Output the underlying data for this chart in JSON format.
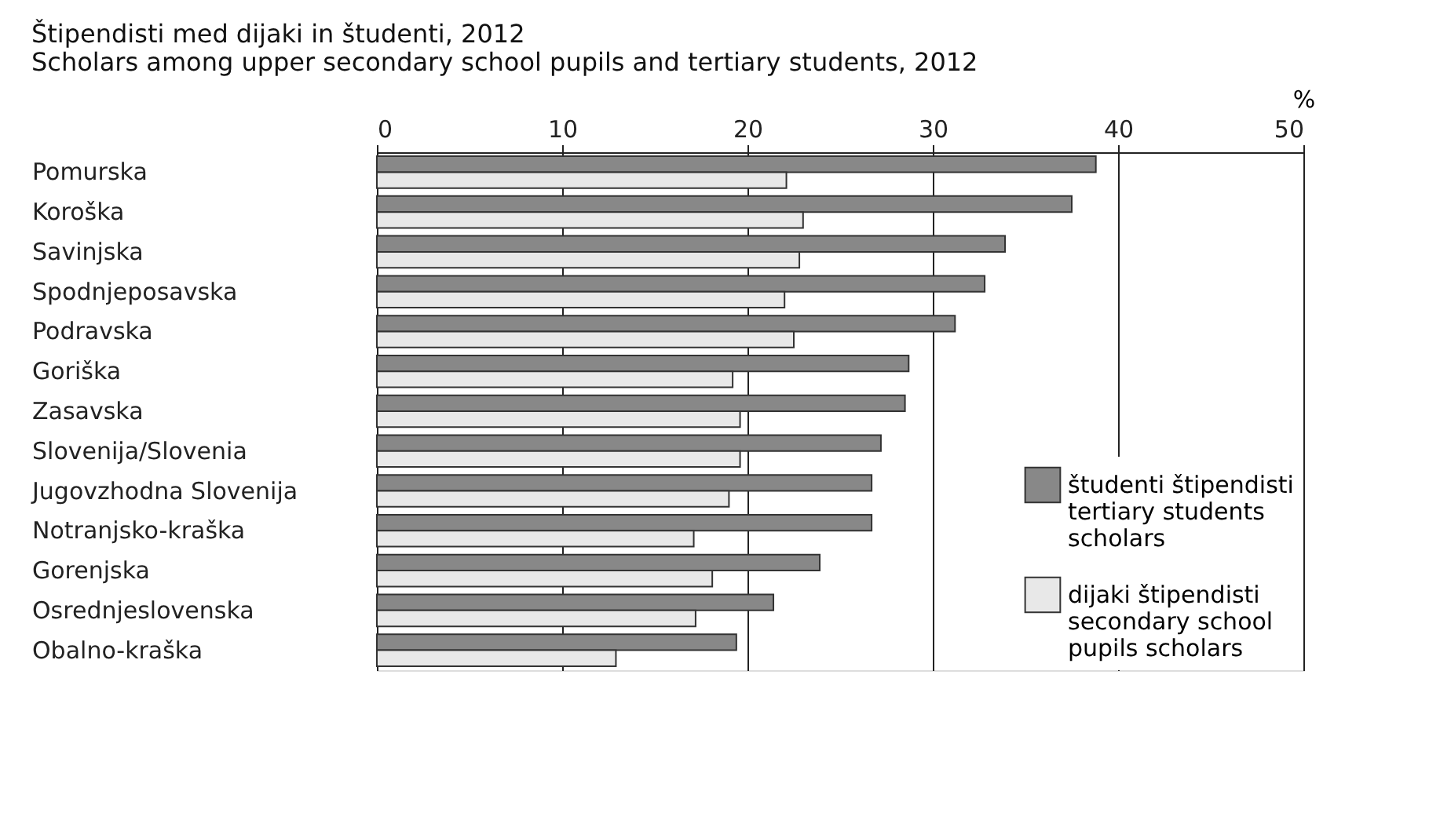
{
  "chart_data": {
    "type": "bar",
    "orientation": "horizontal",
    "title": [
      "Štipendisti med dijaki in študenti, 2012",
      "Scholars among upper secondary school pupils and tertiary students, 2012"
    ],
    "xlabel": "%",
    "categories": [
      "Pomurska",
      "Koroška",
      "Savinjska",
      "Spodnjeposavska",
      "Podravska",
      "Goriška",
      "Zasavska",
      "Slovenija/Slovenia",
      "Jugovzhodna Slovenija",
      "Notranjsko-kraška",
      "Gorenjska",
      "Osrednjeslovenska",
      "Obalno-kraška"
    ],
    "series": [
      {
        "name": "študenti štipendisti\ntertiary students\nscholars",
        "color": "#888888",
        "values": [
          38.8,
          37.5,
          33.9,
          32.8,
          31.2,
          28.7,
          28.5,
          27.2,
          26.7,
          26.7,
          23.9,
          21.4,
          19.4
        ]
      },
      {
        "name": "dijaki štipendisti\nsecondary school\npupils scholars",
        "color": "#e8e8e8",
        "values": [
          22.1,
          23.0,
          22.8,
          22.0,
          22.5,
          19.2,
          19.6,
          19.6,
          19.0,
          17.1,
          18.1,
          17.2,
          12.9
        ]
      }
    ],
    "xlim": [
      0,
      50
    ],
    "xticks": [
      0,
      10,
      20,
      30,
      40,
      50
    ],
    "grid": "x",
    "legend": "bottom right"
  }
}
